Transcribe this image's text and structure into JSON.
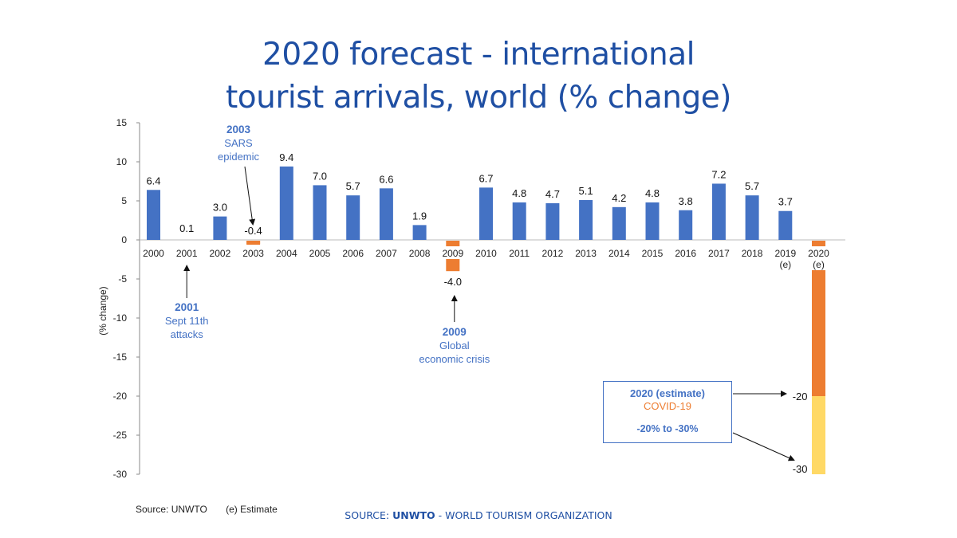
{
  "title": {
    "line1": "2020 forecast - international",
    "line2": "tourist arrivals, world (% change)"
  },
  "chart_data": {
    "type": "bar",
    "ylabel": "(% change)",
    "ylim": [
      -30,
      15
    ],
    "yticks": [
      15,
      10,
      5,
      0,
      -5,
      -10,
      -15,
      -20,
      -25,
      -30
    ],
    "categories": [
      "2000",
      "2001",
      "2002",
      "2003",
      "2004",
      "2005",
      "2006",
      "2007",
      "2008",
      "2009",
      "2010",
      "2011",
      "2012",
      "2013",
      "2014",
      "2015",
      "2016",
      "2017",
      "2018",
      "2019",
      "2020"
    ],
    "category_notes": {
      "2019": "(e)",
      "2020": "(e)"
    },
    "values": [
      6.4,
      0.1,
      3.0,
      -0.4,
      9.4,
      7.0,
      5.7,
      6.6,
      1.9,
      -4.0,
      6.7,
      4.8,
      4.7,
      5.1,
      4.2,
      4.8,
      3.8,
      7.2,
      5.7,
      3.7,
      null
    ],
    "labels": [
      "6.4",
      "0.1",
      "3.0",
      "-0.4",
      "9.4",
      "7.0",
      "5.7",
      "6.6",
      "1.9",
      "-4.0",
      "6.7",
      "4.8",
      "4.7",
      "5.1",
      "4.2",
      "4.8",
      "3.8",
      "7.2",
      "5.7",
      "3.7",
      ""
    ],
    "colors": {
      "positive": "#4472c4",
      "negative": "#ed7d31",
      "forecast_range": "#ffd966"
    },
    "forecast_2020": {
      "low": -30,
      "mid": -20,
      "high": -1,
      "label_mid": "-20",
      "label_low": "-30"
    },
    "annotations": [
      {
        "year": "2003",
        "title": "2003",
        "lines": [
          "SARS",
          "epidemic"
        ]
      },
      {
        "year": "2001",
        "title": "2001",
        "lines": [
          "Sept 11th",
          "attacks"
        ]
      },
      {
        "year": "2009",
        "title": "2009",
        "lines": [
          "Global",
          "economic crisis"
        ]
      }
    ]
  },
  "infobox": {
    "heading": "2020 (estimate)",
    "cause": "COVID-19",
    "range": "-20% to -30%"
  },
  "footer": {
    "source_left": "Source: UNWTO",
    "estimate_note": "(e) Estimate",
    "source_prefix": "SOURCE: ",
    "source_org": "UNWTO",
    "source_suffix": " - WORLD TOURISM ORGANIZATION"
  }
}
